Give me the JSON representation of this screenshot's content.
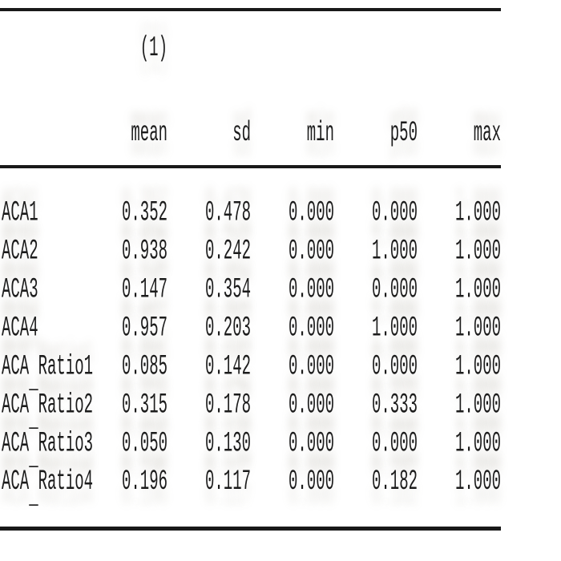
{
  "page": {
    "background": "#ffffff",
    "text_color": "#1c1c1c",
    "rule_color": "#191919"
  },
  "table": {
    "caption": "(1)",
    "columns": [
      "mean",
      "sd",
      "min",
      "p50",
      "max"
    ],
    "rows": [
      {
        "name": "ACA1",
        "pre": "ACA1",
        "us": "",
        "post": "",
        "values": [
          "0.352",
          "0.478",
          "0.000",
          "0.000",
          "1.000"
        ]
      },
      {
        "name": "ACA2",
        "pre": "ACA2",
        "us": "",
        "post": "",
        "values": [
          "0.938",
          "0.242",
          "0.000",
          "1.000",
          "1.000"
        ]
      },
      {
        "name": "ACA3",
        "pre": "ACA3",
        "us": "",
        "post": "",
        "values": [
          "0.147",
          "0.354",
          "0.000",
          "0.000",
          "1.000"
        ]
      },
      {
        "name": "ACA4",
        "pre": "ACA4",
        "us": "",
        "post": "",
        "values": [
          "0.957",
          "0.203",
          "0.000",
          "1.000",
          "1.000"
        ]
      },
      {
        "name": "ACA_Ratio1",
        "pre": "ACA",
        "us": "_",
        "post": "Ratio1",
        "values": [
          "0.085",
          "0.142",
          "0.000",
          "0.000",
          "1.000"
        ]
      },
      {
        "name": "ACA_Ratio2",
        "pre": "ACA",
        "us": "_",
        "post": "Ratio2",
        "values": [
          "0.315",
          "0.178",
          "0.000",
          "0.333",
          "1.000"
        ]
      },
      {
        "name": "ACA_Ratio3",
        "pre": "ACA",
        "us": "_",
        "post": "Ratio3",
        "values": [
          "0.050",
          "0.130",
          "0.000",
          "0.000",
          "1.000"
        ]
      },
      {
        "name": "ACA_Ratio4",
        "pre": "ACA",
        "us": "_",
        "post": "Ratio4",
        "values": [
          "0.196",
          "0.117",
          "0.000",
          "0.182",
          "1.000"
        ]
      }
    ]
  }
}
